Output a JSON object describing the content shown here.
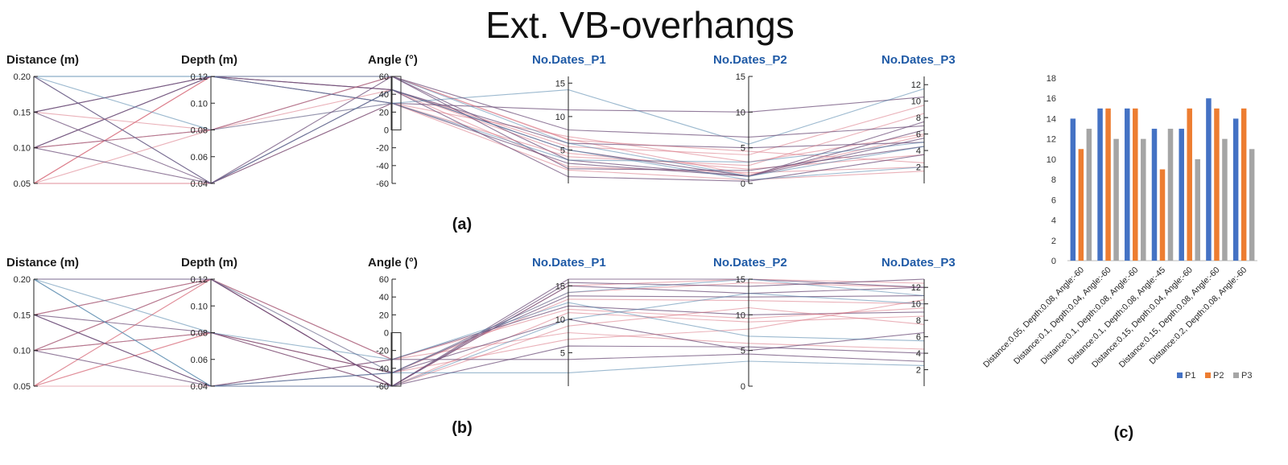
{
  "title": "Ext. VB-overhangs",
  "colors": {
    "axis_title_dark": "#1a1a1a",
    "axis_title_blue": "#1f5aa6",
    "line_red": "#d9717f",
    "line_blue": "#4a7fa8",
    "line_purple": "#6e4f7a",
    "P1": "#4472c4",
    "P2": "#ed7d31",
    "P3": "#a5a5a5"
  },
  "chart_data": [
    {
      "type": "parallel-coordinates",
      "panel_label": "(a)",
      "axes": [
        {
          "name": "Distance (m)",
          "range": [
            0.05,
            0.2
          ],
          "ticks": [
            "0.20",
            "0.15",
            "0.10",
            "0.05"
          ]
        },
        {
          "name": "Depth (m)",
          "range": [
            0.04,
            0.12
          ],
          "ticks": [
            "0.12",
            "0.10",
            "0.08",
            "0.06",
            "0.04"
          ]
        },
        {
          "name": "Angle (°)",
          "range": [
            -60,
            60
          ],
          "ticks": [
            "60",
            "40",
            "20",
            "0",
            "-20",
            "-40",
            "-60"
          ],
          "brush": [
            0,
            60
          ]
        },
        {
          "name": "No.Dates_P1",
          "range": [
            0,
            16
          ],
          "ticks": [
            "15",
            "10",
            "5"
          ]
        },
        {
          "name": "No.Dates_P2",
          "range": [
            0,
            15
          ],
          "ticks": [
            "15",
            "10",
            "5",
            "0"
          ]
        },
        {
          "name": "No.Dates_P3",
          "range": [
            0,
            13
          ],
          "ticks": [
            "12",
            "10",
            "8",
            "6",
            "4",
            "2"
          ]
        }
      ],
      "lines": [
        {
          "v": [
            0.05,
            0.12,
            60,
            6.6,
            1.2,
            5.8
          ],
          "c": "red"
        },
        {
          "v": [
            0.05,
            0.12,
            45,
            4.5,
            2.0,
            3.5
          ],
          "c": "red"
        },
        {
          "v": [
            0.05,
            0.08,
            45,
            2.5,
            1.5,
            2.0
          ],
          "c": "red"
        },
        {
          "v": [
            0.05,
            0.04,
            30,
            7.0,
            3.0,
            6.0
          ],
          "c": "red"
        },
        {
          "v": [
            0.05,
            0.12,
            30,
            2.0,
            0.5,
            1.5
          ],
          "c": "red"
        },
        {
          "v": [
            0.05,
            0.04,
            45,
            5.5,
            4.0,
            9.5
          ],
          "c": "red"
        },
        {
          "v": [
            0.1,
            0.08,
            60,
            3.5,
            1.0,
            7.5
          ],
          "c": "purple"
        },
        {
          "v": [
            0.1,
            0.12,
            45,
            6.0,
            5.0,
            5.0
          ],
          "c": "purple"
        },
        {
          "v": [
            0.1,
            0.04,
            30,
            11.0,
            10.0,
            10.5
          ],
          "c": "purple"
        },
        {
          "v": [
            0.1,
            0.12,
            60,
            2.2,
            1.8,
            4.5
          ],
          "c": "purple"
        },
        {
          "v": [
            0.1,
            0.08,
            30,
            4.0,
            2.5,
            8.5
          ],
          "c": "red"
        },
        {
          "v": [
            0.15,
            0.12,
            45,
            5.0,
            1.0,
            6.5
          ],
          "c": "purple"
        },
        {
          "v": [
            0.15,
            0.08,
            60,
            6.5,
            4.5,
            2.5
          ],
          "c": "red"
        },
        {
          "v": [
            0.15,
            0.04,
            45,
            1.0,
            0.3,
            3.5
          ],
          "c": "purple"
        },
        {
          "v": [
            0.15,
            0.12,
            30,
            3.0,
            1.0,
            5.5
          ],
          "c": "purple"
        },
        {
          "v": [
            0.2,
            0.12,
            60,
            6.0,
            1.0,
            4.5
          ],
          "c": "blue"
        },
        {
          "v": [
            0.2,
            0.04,
            45,
            5.0,
            0.5,
            2.0
          ],
          "c": "blue"
        },
        {
          "v": [
            0.2,
            0.08,
            30,
            14.0,
            5.5,
            11.5
          ],
          "c": "blue"
        },
        {
          "v": [
            0.2,
            0.12,
            30,
            3.5,
            3.0,
            5.0
          ],
          "c": "blue"
        },
        {
          "v": [
            0.2,
            0.04,
            60,
            8.0,
            6.5,
            7.0
          ],
          "c": "purple"
        }
      ]
    },
    {
      "type": "parallel-coordinates",
      "panel_label": "(b)",
      "axes": [
        {
          "name": "Distance (m)",
          "range": [
            0.05,
            0.2
          ],
          "ticks": [
            "0.20",
            "0.15",
            "0.10",
            "0.05"
          ]
        },
        {
          "name": "Depth (m)",
          "range": [
            0.04,
            0.12
          ],
          "ticks": [
            "0.12",
            "0.10",
            "0.08",
            "0.06",
            "0.04"
          ]
        },
        {
          "name": "Angle (°)",
          "range": [
            -60,
            60
          ],
          "ticks": [
            "60",
            "40",
            "20",
            "0",
            "-20",
            "-40",
            "-60"
          ],
          "brush": [
            -60,
            0
          ]
        },
        {
          "name": "No.Dates_P1",
          "range": [
            0,
            16
          ],
          "ticks": [
            "15",
            "10",
            "5"
          ]
        },
        {
          "name": "No.Dates_P2",
          "range": [
            0,
            15
          ],
          "ticks": [
            "15",
            "10",
            "5",
            "0"
          ]
        },
        {
          "name": "No.Dates_P3",
          "range": [
            0,
            13
          ],
          "ticks": [
            "12",
            "10",
            "8",
            "6",
            "4",
            "2"
          ]
        }
      ],
      "lines": [
        {
          "v": [
            0.05,
            0.12,
            -60,
            15.0,
            15.0,
            12.5
          ],
          "c": "red"
        },
        {
          "v": [
            0.05,
            0.08,
            -45,
            13.0,
            12.0,
            10.0
          ],
          "c": "red"
        },
        {
          "v": [
            0.05,
            0.04,
            -30,
            8.0,
            6.0,
            4.5
          ],
          "c": "red"
        },
        {
          "v": [
            0.05,
            0.12,
            -45,
            14.0,
            14.5,
            12.0
          ],
          "c": "red"
        },
        {
          "v": [
            0.05,
            0.08,
            -60,
            11.0,
            9.0,
            8.5
          ],
          "c": "red"
        },
        {
          "v": [
            0.1,
            0.12,
            -30,
            12.0,
            10.0,
            9.0
          ],
          "c": "purple"
        },
        {
          "v": [
            0.1,
            0.08,
            -60,
            15.0,
            13.0,
            12.0
          ],
          "c": "purple"
        },
        {
          "v": [
            0.1,
            0.04,
            -45,
            10.0,
            5.0,
            6.5
          ],
          "c": "purple"
        },
        {
          "v": [
            0.1,
            0.08,
            -45,
            7.0,
            8.0,
            10.5
          ],
          "c": "red"
        },
        {
          "v": [
            0.1,
            0.12,
            -60,
            9.0,
            11.0,
            7.5
          ],
          "c": "red"
        },
        {
          "v": [
            0.15,
            0.12,
            -60,
            16.0,
            15.0,
            12.0
          ],
          "c": "purple"
        },
        {
          "v": [
            0.15,
            0.08,
            -45,
            13.5,
            12.5,
            11.0
          ],
          "c": "purple"
        },
        {
          "v": [
            0.15,
            0.04,
            -60,
            6.0,
            5.5,
            4.0
          ],
          "c": "purple"
        },
        {
          "v": [
            0.15,
            0.12,
            -30,
            11.5,
            9.5,
            9.5
          ],
          "c": "red"
        },
        {
          "v": [
            0.15,
            0.04,
            -30,
            4.0,
            4.5,
            3.0
          ],
          "c": "purple"
        },
        {
          "v": [
            0.2,
            0.12,
            -45,
            14.0,
            15.0,
            11.0
          ],
          "c": "blue"
        },
        {
          "v": [
            0.2,
            0.04,
            -60,
            10.0,
            13.0,
            10.0
          ],
          "c": "blue"
        },
        {
          "v": [
            0.2,
            0.08,
            -30,
            12.5,
            7.0,
            5.5
          ],
          "c": "blue"
        },
        {
          "v": [
            0.2,
            0.12,
            -60,
            15.5,
            14.0,
            13.0
          ],
          "c": "purple"
        },
        {
          "v": [
            0.2,
            0.04,
            -45,
            2.0,
            3.5,
            2.5
          ],
          "c": "blue"
        }
      ]
    },
    {
      "type": "bar",
      "panel_label": "(c)",
      "categories": [
        "Distance:0.05, Depth:0.08, Angle:-60",
        "Distance:0.1, Depth:0.04, Angle:-60",
        "Distance:0.1, Depth:0.08, Angle:-60",
        "Distance:0.1, Depth:0.08, Angle:-45",
        "Distance:0.15, Depth:0.04, Angle:-60",
        "Distance:0.15, Depth:0.08, Angle:-60",
        "Distance:0.2, Depth:0.08, Angle:-60"
      ],
      "series": [
        {
          "name": "P1",
          "values": [
            14,
            15,
            15,
            13,
            13,
            16,
            14
          ]
        },
        {
          "name": "P2",
          "values": [
            11,
            15,
            15,
            9,
            15,
            15,
            15
          ]
        },
        {
          "name": "P3",
          "values": [
            13,
            12,
            12,
            13,
            10,
            12,
            11
          ]
        }
      ],
      "ylim": [
        0,
        18
      ],
      "yticks": [
        "0",
        "2",
        "4",
        "6",
        "8",
        "10",
        "12",
        "14",
        "16",
        "18"
      ],
      "legend": "bottom-right",
      "grid": false
    }
  ]
}
